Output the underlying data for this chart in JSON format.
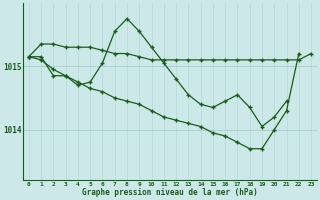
{
  "bg_color": "#cce8e8",
  "line_color": "#1a5c1a",
  "hgrid_color": "#aad4d4",
  "vgrid_color": "#bbdddd",
  "xlabel": "Graphe pression niveau de la mer (hPa)",
  "ylabel_ticks": [
    1014,
    1015
  ],
  "xlim": [
    -0.5,
    23.5
  ],
  "ylim": [
    1013.2,
    1016.0
  ],
  "xticks": [
    0,
    1,
    2,
    3,
    4,
    5,
    6,
    7,
    8,
    9,
    10,
    11,
    12,
    13,
    14,
    15,
    16,
    17,
    18,
    19,
    20,
    21,
    22,
    23
  ],
  "series1_x": [
    0,
    1,
    2,
    3,
    4,
    5,
    6,
    7,
    8,
    9,
    10,
    11,
    12,
    13,
    14,
    15,
    16,
    17,
    18,
    19,
    20,
    21,
    22,
    23
  ],
  "series1_y": [
    1015.15,
    1015.35,
    1015.35,
    1015.3,
    1015.3,
    1015.3,
    1015.25,
    1015.2,
    1015.2,
    1015.15,
    1015.1,
    1015.1,
    1015.1,
    1015.1,
    1015.1,
    1015.1,
    1015.1,
    1015.1,
    1015.1,
    1015.1,
    1015.1,
    1015.1,
    1015.1,
    1015.2
  ],
  "series2_x": [
    0,
    1,
    2,
    3,
    4,
    5,
    6,
    7,
    8,
    9,
    10,
    11,
    12,
    13,
    14,
    15,
    16,
    17,
    18,
    19,
    20,
    21
  ],
  "series2_y": [
    1015.15,
    1015.15,
    1014.85,
    1014.85,
    1014.7,
    1014.75,
    1015.05,
    1015.55,
    1015.75,
    1015.55,
    1015.3,
    1015.05,
    1014.8,
    1014.55,
    1014.4,
    1014.35,
    1014.45,
    1014.55,
    1014.35,
    1014.05,
    1014.2,
    1014.45
  ],
  "series3_x": [
    0,
    1,
    2,
    3,
    4,
    5,
    6,
    7,
    8,
    9,
    10,
    11,
    12,
    13,
    14,
    15,
    16,
    17,
    18,
    19,
    20,
    21,
    22
  ],
  "series3_y": [
    1015.15,
    1015.1,
    1014.95,
    1014.85,
    1014.75,
    1014.65,
    1014.6,
    1014.5,
    1014.45,
    1014.4,
    1014.3,
    1014.2,
    1014.15,
    1014.1,
    1014.05,
    1013.95,
    1013.9,
    1013.8,
    1013.7,
    1013.7,
    1014.0,
    1014.3,
    1015.2
  ]
}
